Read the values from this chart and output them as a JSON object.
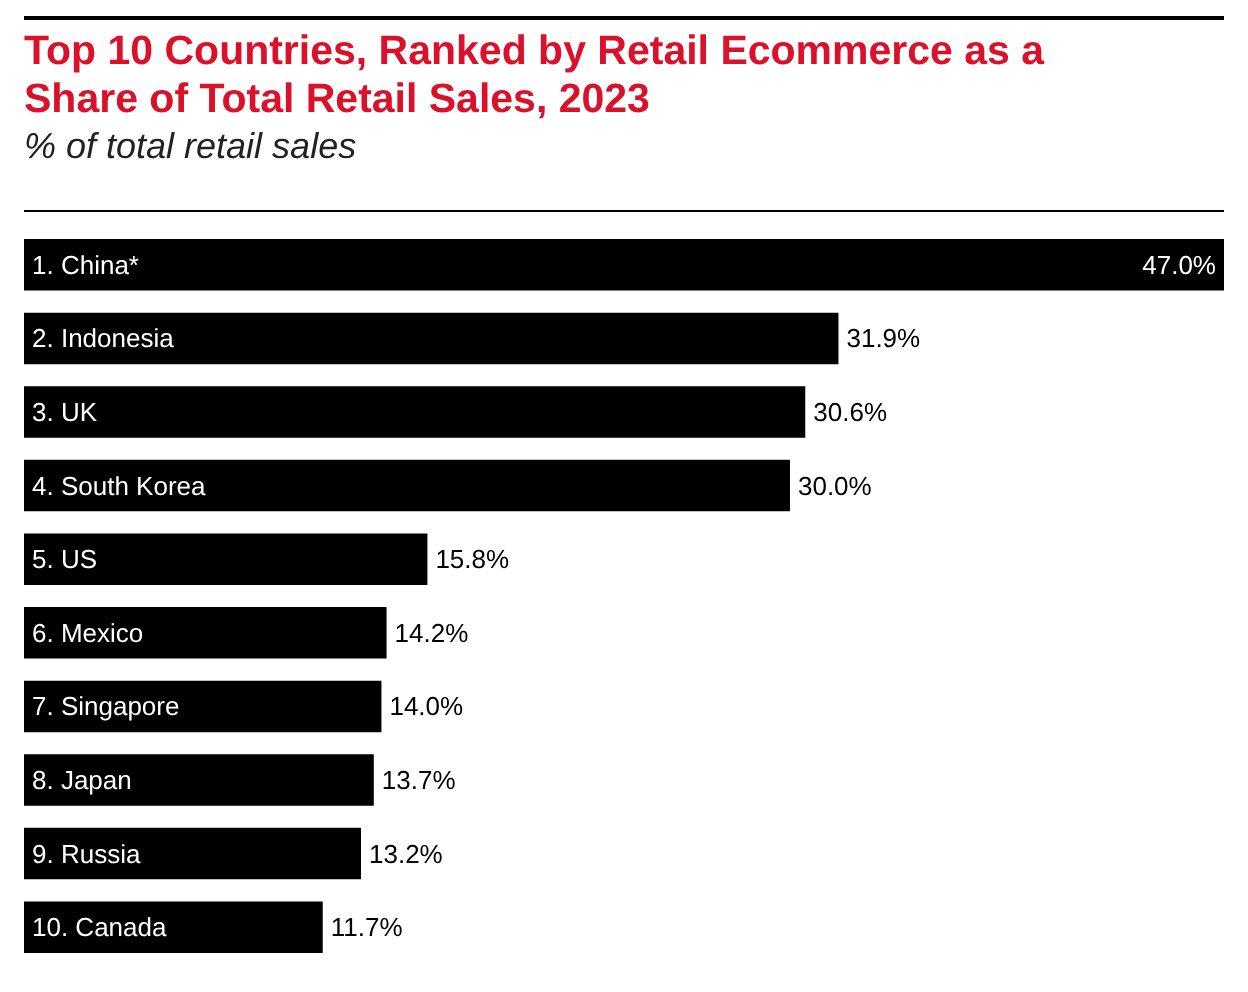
{
  "chart_data": {
    "type": "bar",
    "orientation": "horizontal",
    "title": "Top 10 Countries, Ranked by Retail Ecommerce as a Share of Total Retail Sales, 2023",
    "subtitle": "% of total retail sales",
    "categories": [
      "1. China*",
      "2. Indonesia",
      "3. UK",
      "4. South Korea",
      "5. US",
      "6. Mexico",
      "7. Singapore",
      "8. Japan",
      "9. Russia",
      "10. Canada"
    ],
    "values": [
      47.0,
      31.9,
      30.6,
      30.0,
      15.8,
      14.2,
      14.0,
      13.7,
      13.2,
      11.7
    ],
    "value_labels": [
      "47.0%",
      "31.9%",
      "30.6%",
      "30.0%",
      "15.8%",
      "14.2%",
      "14.0%",
      "13.7%",
      "13.2%",
      "11.7%"
    ],
    "color": "#000000"
  }
}
